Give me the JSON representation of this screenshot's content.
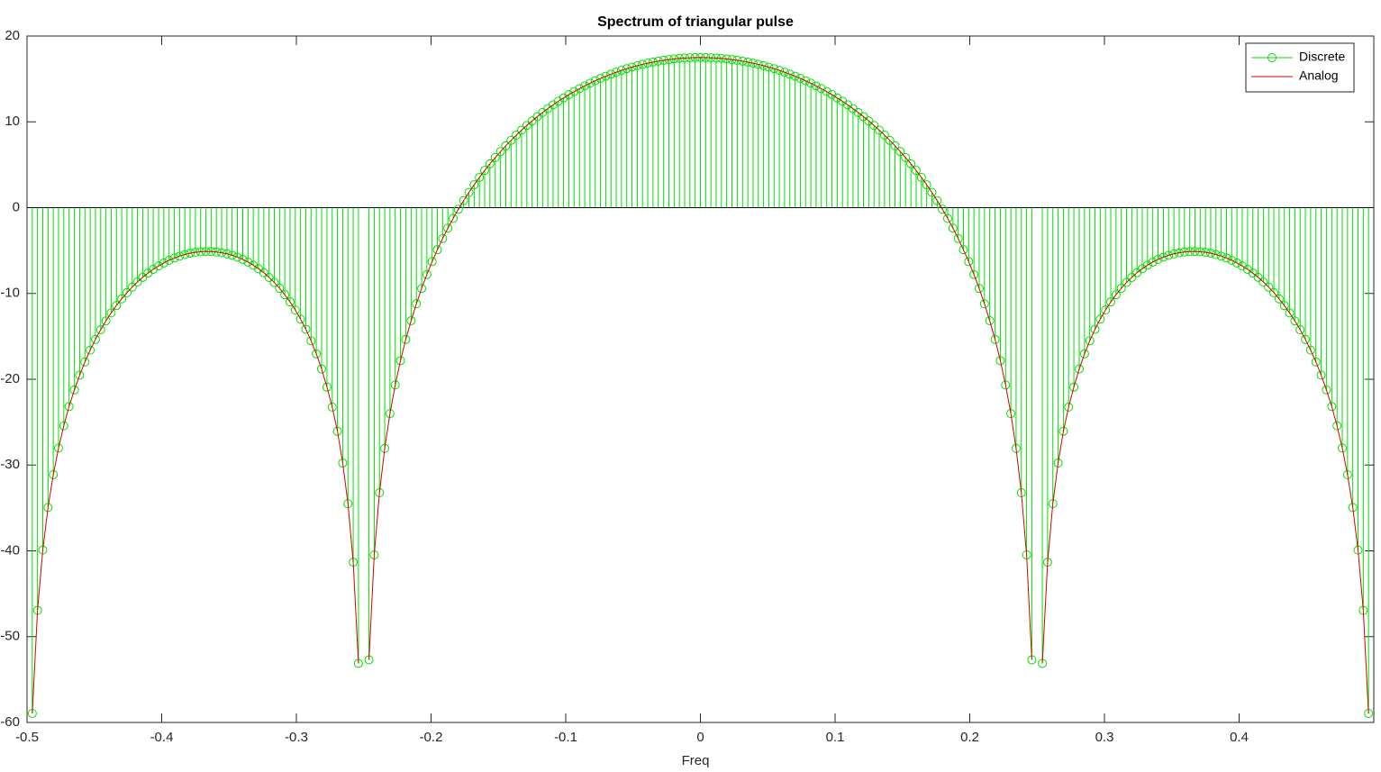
{
  "chart_data": {
    "type": "stem",
    "title": "Spectrum of triangular pulse",
    "x_label": "Freq",
    "xlim": [
      -0.5,
      0.5
    ],
    "ylim": [
      -60,
      20
    ],
    "xticks": [
      -0.5,
      -0.4,
      -0.3,
      -0.2,
      -0.1,
      0,
      0.1,
      0.2,
      0.3,
      0.4
    ],
    "yticks": [
      -60,
      -50,
      -40,
      -30,
      -20,
      -10,
      0,
      10,
      20
    ],
    "legend": "northeast",
    "x": [
      -0.4961,
      -0.4922,
      -0.4883,
      -0.4844,
      -0.4805,
      -0.4766,
      -0.4727,
      -0.4688,
      -0.4648,
      -0.4609,
      -0.457,
      -0.4531,
      -0.4492,
      -0.4453,
      -0.4414,
      -0.4375,
      -0.4336,
      -0.4297,
      -0.4258,
      -0.4219,
      -0.418,
      -0.4141,
      -0.4102,
      -0.4063,
      -0.4023,
      -0.3984,
      -0.3945,
      -0.3906,
      -0.3867,
      -0.3828,
      -0.3789,
      -0.375,
      -0.3711,
      -0.3672,
      -0.3633,
      -0.3594,
      -0.3555,
      -0.3516,
      -0.3477,
      -0.3438,
      -0.3398,
      -0.3359,
      -0.332,
      -0.3281,
      -0.3242,
      -0.3203,
      -0.3164,
      -0.3125,
      -0.3086,
      -0.3047,
      -0.3008,
      -0.2969,
      -0.293,
      -0.2891,
      -0.2852,
      -0.2813,
      -0.2773,
      -0.2734,
      -0.2695,
      -0.2656,
      -0.2617,
      -0.2578,
      -0.2539,
      -0.25,
      -0.2461,
      -0.2422,
      -0.2383,
      -0.2344,
      -0.2305,
      -0.2266,
      -0.2227,
      -0.2188,
      -0.2148,
      -0.2109,
      -0.207,
      -0.2031,
      -0.1992,
      -0.1953,
      -0.1914,
      -0.1875,
      -0.1836,
      -0.1797,
      -0.1758,
      -0.1719,
      -0.168,
      -0.1641,
      -0.1602,
      -0.1563,
      -0.1523,
      -0.1484,
      -0.1445,
      -0.1406,
      -0.1367,
      -0.1328,
      -0.1289,
      -0.125,
      -0.1211,
      -0.1172,
      -0.1133,
      -0.1094,
      -0.1055,
      -0.1016,
      -0.0977,
      -0.0938,
      -0.0898,
      -0.0859,
      -0.082,
      -0.0781,
      -0.0742,
      -0.0703,
      -0.0664,
      -0.0625,
      -0.0586,
      -0.0547,
      -0.0508,
      -0.0469,
      -0.043,
      -0.0391,
      -0.0352,
      -0.0313,
      -0.0273,
      -0.0234,
      -0.0195,
      -0.0156,
      -0.0117,
      -0.0078,
      -0.0039,
      0,
      0.0039,
      0.0078,
      0.0117,
      0.0156,
      0.0195,
      0.0234,
      0.0273,
      0.0313,
      0.0352,
      0.0391,
      0.043,
      0.0469,
      0.0508,
      0.0547,
      0.0586,
      0.0625,
      0.0664,
      0.0703,
      0.0742,
      0.0781,
      0.082,
      0.0859,
      0.0898,
      0.0938,
      0.0977,
      0.1016,
      0.1055,
      0.1094,
      0.1133,
      0.1172,
      0.1211,
      0.125,
      0.1289,
      0.1328,
      0.1367,
      0.1406,
      0.1445,
      0.1484,
      0.1523,
      0.1563,
      0.1602,
      0.1641,
      0.168,
      0.1719,
      0.1758,
      0.1797,
      0.1836,
      0.1875,
      0.1914,
      0.1953,
      0.1992,
      0.2031,
      0.207,
      0.2109,
      0.2148,
      0.2188,
      0.2227,
      0.2266,
      0.2305,
      0.2344,
      0.2383,
      0.2422,
      0.2461,
      0.25,
      0.2539,
      0.2578,
      0.2617,
      0.2656,
      0.2695,
      0.2734,
      0.2773,
      0.2813,
      0.2852,
      0.2891,
      0.293,
      0.2969,
      0.3008,
      0.3047,
      0.3086,
      0.3125,
      0.3164,
      0.3203,
      0.3242,
      0.3281,
      0.332,
      0.3359,
      0.3398,
      0.3438,
      0.3477,
      0.3516,
      0.3555,
      0.3594,
      0.3633,
      0.3672,
      0.3711,
      0.375,
      0.3789,
      0.3828,
      0.3867,
      0.3906,
      0.3945,
      0.3984,
      0.4023,
      0.4063,
      0.4102,
      0.4141,
      0.418,
      0.4219,
      0.4258,
      0.4297,
      0.4336,
      0.4375,
      0.4414,
      0.4453,
      0.4492,
      0.4531,
      0.457,
      0.4609,
      0.4648,
      0.4688,
      0.4727,
      0.4766,
      0.4805,
      0.4844,
      0.4883,
      0.4922,
      0.4961
    ],
    "series": [
      {
        "name": "Discrete",
        "color": "#00e000",
        "marker": "circle",
        "values": [
          -58.95,
          -46.93,
          -39.91,
          -34.95,
          -31.13,
          -28.02,
          -25.42,
          -23.18,
          -21.24,
          -19.52,
          -17.98,
          -16.6,
          -15.36,
          -14.23,
          -13.2,
          -12.27,
          -11.41,
          -10.63,
          -9.91,
          -9.26,
          -8.66,
          -8.12,
          -7.63,
          -7.19,
          -6.8,
          -6.45,
          -6.14,
          -5.87,
          -5.65,
          -5.46,
          -5.31,
          -5.21,
          -5.14,
          -5.11,
          -5.12,
          -5.17,
          -5.26,
          -5.38,
          -5.56,
          -5.77,
          -6.04,
          -6.35,
          -6.71,
          -7.12,
          -7.59,
          -8.13,
          -8.72,
          -9.4,
          -10.15,
          -10.99,
          -11.93,
          -12.99,
          -14.17,
          -15.52,
          -17.04,
          -18.8,
          -20.91,
          -23.24,
          -26.06,
          -29.76,
          -34.5,
          -41.32,
          -53.12,
          null,
          -52.7,
          -40.47,
          -33.23,
          -28.06,
          -24.0,
          -20.67,
          -17.83,
          -15.36,
          -13.17,
          -11.21,
          -9.42,
          -7.79,
          -6.29,
          -4.9,
          -3.6,
          -2.39,
          -1.26,
          -0.19,
          0.82,
          1.77,
          2.67,
          3.52,
          4.34,
          5.11,
          5.84,
          6.54,
          7.21,
          7.84,
          8.45,
          9.03,
          9.58,
          10.1,
          10.61,
          11.09,
          11.54,
          11.98,
          12.4,
          12.79,
          13.17,
          13.53,
          13.87,
          14.19,
          14.5,
          14.79,
          15.06,
          15.32,
          15.56,
          15.79,
          16.0,
          16.2,
          16.38,
          16.55,
          16.7,
          16.84,
          16.97,
          17.08,
          17.18,
          17.26,
          17.34,
          17.4,
          17.44,
          17.47,
          17.49,
          17.5,
          17.49,
          17.47,
          17.44,
          17.4,
          17.34,
          17.26,
          17.18,
          17.08,
          16.97,
          16.84,
          16.7,
          16.55,
          16.38,
          16.2,
          16.0,
          15.79,
          15.56,
          15.32,
          15.06,
          14.79,
          14.5,
          14.19,
          13.87,
          13.53,
          13.17,
          12.79,
          12.4,
          11.98,
          11.54,
          11.09,
          10.61,
          10.1,
          9.58,
          9.03,
          8.45,
          7.84,
          7.21,
          6.54,
          5.84,
          5.11,
          4.34,
          3.52,
          2.67,
          1.77,
          0.82,
          -0.19,
          -1.26,
          -2.39,
          -3.6,
          -4.9,
          -6.29,
          -7.79,
          -9.42,
          -11.21,
          -13.17,
          -15.36,
          -17.83,
          -20.67,
          -24.0,
          -28.06,
          -33.23,
          -40.47,
          -52.7,
          null,
          -53.12,
          -41.32,
          -34.5,
          -29.76,
          -26.06,
          -23.24,
          -20.91,
          -18.8,
          -17.04,
          -15.52,
          -14.17,
          -12.99,
          -11.93,
          -10.99,
          -10.15,
          -9.4,
          -8.72,
          -8.13,
          -7.59,
          -7.12,
          -6.71,
          -6.35,
          -6.04,
          -5.77,
          -5.56,
          -5.38,
          -5.26,
          -5.17,
          -5.12,
          -5.11,
          -5.14,
          -5.21,
          -5.31,
          -5.46,
          -5.65,
          -5.87,
          -6.14,
          -6.45,
          -6.8,
          -7.19,
          -7.63,
          -8.12,
          -8.66,
          -9.26,
          -9.91,
          -10.63,
          -11.41,
          -12.27,
          -13.2,
          -14.23,
          -15.36,
          -16.6,
          -17.98,
          -19.52,
          -21.24,
          -23.18,
          -25.42,
          -28.02,
          -31.13,
          -34.95,
          -39.91,
          -46.93,
          -58.95
        ]
      },
      {
        "name": "Analog",
        "color": "#d40000",
        "marker": "none",
        "values": [
          -58.95,
          -46.93,
          -39.91,
          -34.95,
          -31.13,
          -28.02,
          -25.42,
          -23.18,
          -21.24,
          -19.52,
          -17.98,
          -16.6,
          -15.36,
          -14.23,
          -13.2,
          -12.27,
          -11.41,
          -10.63,
          -9.91,
          -9.26,
          -8.66,
          -8.12,
          -7.63,
          -7.19,
          -6.8,
          -6.45,
          -6.14,
          -5.87,
          -5.65,
          -5.46,
          -5.31,
          -5.21,
          -5.14,
          -5.11,
          -5.12,
          -5.17,
          -5.26,
          -5.38,
          -5.56,
          -5.77,
          -6.04,
          -6.35,
          -6.71,
          -7.12,
          -7.59,
          -8.13,
          -8.72,
          -9.4,
          -10.15,
          -10.99,
          -11.93,
          -12.99,
          -14.17,
          -15.52,
          -17.04,
          -18.8,
          -20.91,
          -23.24,
          -26.06,
          -29.76,
          -34.5,
          -41.32,
          -53.12,
          null,
          -52.7,
          -40.47,
          -33.23,
          -28.06,
          -24.0,
          -20.67,
          -17.83,
          -15.36,
          -13.17,
          -11.21,
          -9.42,
          -7.79,
          -6.29,
          -4.9,
          -3.6,
          -2.39,
          -1.26,
          -0.19,
          0.82,
          1.77,
          2.67,
          3.52,
          4.34,
          5.11,
          5.84,
          6.54,
          7.21,
          7.84,
          8.45,
          9.03,
          9.58,
          10.1,
          10.61,
          11.09,
          11.54,
          11.98,
          12.4,
          12.79,
          13.17,
          13.53,
          13.87,
          14.19,
          14.5,
          14.79,
          15.06,
          15.32,
          15.56,
          15.79,
          16.0,
          16.2,
          16.38,
          16.55,
          16.7,
          16.84,
          16.97,
          17.08,
          17.18,
          17.26,
          17.34,
          17.4,
          17.44,
          17.47,
          17.49,
          17.5,
          17.49,
          17.47,
          17.44,
          17.4,
          17.34,
          17.26,
          17.18,
          17.08,
          16.97,
          16.84,
          16.7,
          16.55,
          16.38,
          16.2,
          16.0,
          15.79,
          15.56,
          15.32,
          15.06,
          14.79,
          14.5,
          14.19,
          13.87,
          13.53,
          13.17,
          12.79,
          12.4,
          11.98,
          11.54,
          11.09,
          10.61,
          10.1,
          9.58,
          9.03,
          8.45,
          7.84,
          7.21,
          6.54,
          5.84,
          5.11,
          4.34,
          3.52,
          2.67,
          1.77,
          0.82,
          -0.19,
          -1.26,
          -2.39,
          -3.6,
          -4.9,
          -6.29,
          -7.79,
          -9.42,
          -11.21,
          -13.17,
          -15.36,
          -17.83,
          -20.67,
          -24.0,
          -28.06,
          -33.23,
          -40.47,
          -52.7,
          null,
          -53.12,
          -41.32,
          -34.5,
          -29.76,
          -26.06,
          -23.24,
          -20.91,
          -18.8,
          -17.04,
          -15.52,
          -14.17,
          -12.99,
          -11.93,
          -10.99,
          -10.15,
          -9.4,
          -8.72,
          -8.13,
          -7.59,
          -7.12,
          -6.71,
          -6.35,
          -6.04,
          -5.77,
          -5.56,
          -5.38,
          -5.26,
          -5.17,
          -5.12,
          -5.11,
          -5.14,
          -5.21,
          -5.31,
          -5.46,
          -5.65,
          -5.87,
          -6.14,
          -6.45,
          -6.8,
          -7.19,
          -7.63,
          -8.12,
          -8.66,
          -9.26,
          -9.91,
          -10.63,
          -11.41,
          -12.27,
          -13.2,
          -14.23,
          -15.36,
          -16.6,
          -17.98,
          -19.52,
          -21.24,
          -23.18,
          -25.42,
          -28.02,
          -31.13,
          -34.95,
          -39.91,
          -46.93,
          -58.95
        ]
      }
    ]
  }
}
